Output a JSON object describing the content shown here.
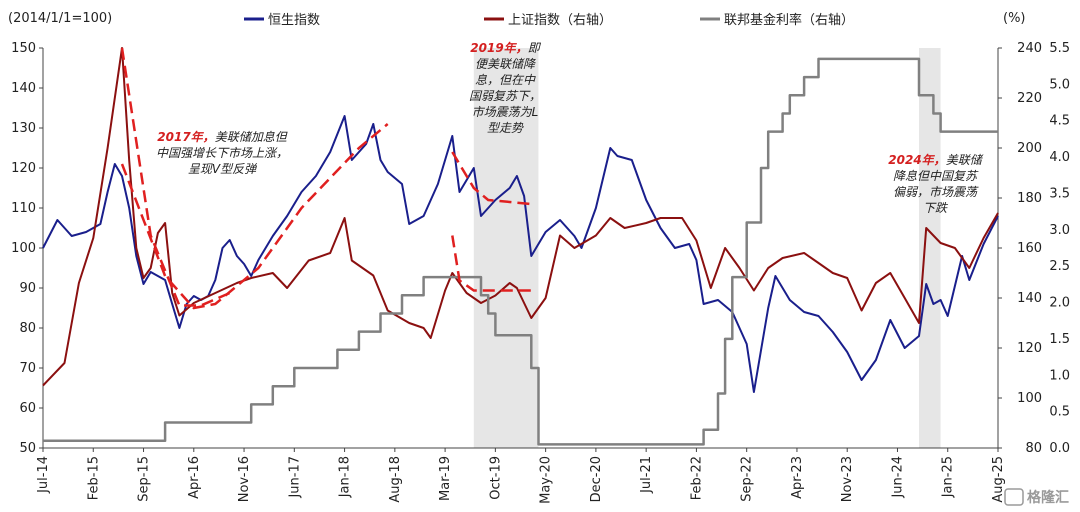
{
  "chart_data": {
    "type": "line",
    "axes": {
      "left": {
        "label": "(2014/1/1=100)",
        "range": [
          50,
          150
        ],
        "ticks": [
          50,
          60,
          70,
          80,
          90,
          100,
          110,
          120,
          130,
          140,
          150
        ]
      },
      "right1": {
        "label": "",
        "range": [
          80,
          240
        ],
        "ticks": [
          80,
          100,
          120,
          140,
          160,
          180,
          200,
          220,
          240
        ]
      },
      "right2": {
        "label": "(%)",
        "range": [
          0.0,
          5.5
        ],
        "ticks": [
          "0.0",
          "0.5",
          "1.0",
          "1.5",
          "2.0",
          "2.5",
          "3.0",
          "3.5",
          "4.0",
          "4.5",
          "5.0",
          "5.5"
        ]
      }
    },
    "x_range": [
      "2014-07",
      "2025-08"
    ],
    "x_ticks": [
      "Jul-14",
      "Feb-15",
      "Sep-15",
      "Apr-16",
      "Nov-16",
      "Jun-17",
      "Jan-18",
      "Aug-18",
      "Mar-19",
      "Oct-19",
      "May-20",
      "Dec-20",
      "Jul-21",
      "Feb-22",
      "Sep-22",
      "Apr-23",
      "Nov-23",
      "Jun-24",
      "Jan-25",
      "Aug-25"
    ],
    "legend_placement": "top",
    "shaded_periods": [
      {
        "start": "2019-07",
        "end": "2020-04"
      },
      {
        "start": "2024-09",
        "end": "2024-12"
      }
    ],
    "series": [
      {
        "name": "恒生指数",
        "axis": "left",
        "color": "#1a1f8c",
        "points": [
          [
            "2014-07",
            100
          ],
          [
            "2014-09",
            107
          ],
          [
            "2014-11",
            103
          ],
          [
            "2015-01",
            104
          ],
          [
            "2015-03",
            106
          ],
          [
            "2015-04",
            114
          ],
          [
            "2015-05",
            121
          ],
          [
            "2015-06",
            118
          ],
          [
            "2015-07",
            110
          ],
          [
            "2015-08",
            98
          ],
          [
            "2015-09",
            91
          ],
          [
            "2015-10",
            94
          ],
          [
            "2015-11",
            93
          ],
          [
            "2015-12",
            92
          ],
          [
            "2016-01",
            86
          ],
          [
            "2016-02",
            80
          ],
          [
            "2016-03",
            86
          ],
          [
            "2016-04",
            88
          ],
          [
            "2016-05",
            87
          ],
          [
            "2016-06",
            88
          ],
          [
            "2016-07",
            92
          ],
          [
            "2016-08",
            100
          ],
          [
            "2016-09",
            102
          ],
          [
            "2016-10",
            98
          ],
          [
            "2016-11",
            96
          ],
          [
            "2016-12",
            93
          ],
          [
            "2017-01",
            97
          ],
          [
            "2017-03",
            103
          ],
          [
            "2017-05",
            108
          ],
          [
            "2017-07",
            114
          ],
          [
            "2017-09",
            118
          ],
          [
            "2017-11",
            124
          ],
          [
            "2018-01",
            133
          ],
          [
            "2018-02",
            122
          ],
          [
            "2018-04",
            126
          ],
          [
            "2018-05",
            131
          ],
          [
            "2018-06",
            122
          ],
          [
            "2018-07",
            119
          ],
          [
            "2018-09",
            116
          ],
          [
            "2018-10",
            106
          ],
          [
            "2018-12",
            108
          ],
          [
            "2019-02",
            116
          ],
          [
            "2019-04",
            128
          ],
          [
            "2019-05",
            114
          ],
          [
            "2019-07",
            120
          ],
          [
            "2019-08",
            108
          ],
          [
            "2019-10",
            112
          ],
          [
            "2019-12",
            115
          ],
          [
            "2020-01",
            118
          ],
          [
            "2020-02",
            113
          ],
          [
            "2020-03",
            98
          ],
          [
            "2020-05",
            104
          ],
          [
            "2020-07",
            107
          ],
          [
            "2020-09",
            103
          ],
          [
            "2020-10",
            100
          ],
          [
            "2020-12",
            110
          ],
          [
            "2021-02",
            125
          ],
          [
            "2021-03",
            123
          ],
          [
            "2021-05",
            122
          ],
          [
            "2021-07",
            112
          ],
          [
            "2021-09",
            105
          ],
          [
            "2021-11",
            100
          ],
          [
            "2022-01",
            101
          ],
          [
            "2022-02",
            97
          ],
          [
            "2022-03",
            86
          ],
          [
            "2022-05",
            87
          ],
          [
            "2022-07",
            84
          ],
          [
            "2022-09",
            76
          ],
          [
            "2022-10",
            64
          ],
          [
            "2022-12",
            85
          ],
          [
            "2023-01",
            93
          ],
          [
            "2023-03",
            87
          ],
          [
            "2023-05",
            84
          ],
          [
            "2023-07",
            83
          ],
          [
            "2023-09",
            79
          ],
          [
            "2023-11",
            74
          ],
          [
            "2024-01",
            67
          ],
          [
            "2024-03",
            72
          ],
          [
            "2024-05",
            82
          ],
          [
            "2024-07",
            75
          ],
          [
            "2024-09",
            78
          ],
          [
            "2024-10",
            91
          ],
          [
            "2024-11",
            86
          ],
          [
            "2024-12",
            87
          ],
          [
            "2025-01",
            83
          ],
          [
            "2025-03",
            98
          ],
          [
            "2025-04",
            92
          ],
          [
            "2025-06",
            101
          ],
          [
            "2025-08",
            108
          ]
        ]
      },
      {
        "name": "上证指数（右轴）",
        "axis": "right1",
        "color": "#8b1010",
        "points": [
          [
            "2014-07",
            105
          ],
          [
            "2014-10",
            114
          ],
          [
            "2014-12",
            146
          ],
          [
            "2015-02",
            164
          ],
          [
            "2015-04",
            200
          ],
          [
            "2015-06",
            240
          ],
          [
            "2015-07",
            195
          ],
          [
            "2015-08",
            160
          ],
          [
            "2015-09",
            148
          ],
          [
            "2015-10",
            152
          ],
          [
            "2015-11",
            166
          ],
          [
            "2015-12",
            170
          ],
          [
            "2016-01",
            142
          ],
          [
            "2016-02",
            133
          ],
          [
            "2016-04",
            138
          ],
          [
            "2016-07",
            142
          ],
          [
            "2016-10",
            146
          ],
          [
            "2016-12",
            148
          ],
          [
            "2017-03",
            150
          ],
          [
            "2017-05",
            144
          ],
          [
            "2017-08",
            155
          ],
          [
            "2017-11",
            158
          ],
          [
            "2018-01",
            172
          ],
          [
            "2018-02",
            155
          ],
          [
            "2018-05",
            149
          ],
          [
            "2018-07",
            135
          ],
          [
            "2018-10",
            130
          ],
          [
            "2018-12",
            128
          ],
          [
            "2019-01",
            124
          ],
          [
            "2019-03",
            143
          ],
          [
            "2019-04",
            150
          ],
          [
            "2019-06",
            142
          ],
          [
            "2019-08",
            138
          ],
          [
            "2019-10",
            141
          ],
          [
            "2019-12",
            146
          ],
          [
            "2020-01",
            144
          ],
          [
            "2020-03",
            132
          ],
          [
            "2020-05",
            140
          ],
          [
            "2020-07",
            165
          ],
          [
            "2020-09",
            160
          ],
          [
            "2020-12",
            165
          ],
          [
            "2021-02",
            172
          ],
          [
            "2021-04",
            168
          ],
          [
            "2021-07",
            170
          ],
          [
            "2021-09",
            172
          ],
          [
            "2021-12",
            172
          ],
          [
            "2022-02",
            163
          ],
          [
            "2022-04",
            144
          ],
          [
            "2022-06",
            160
          ],
          [
            "2022-08",
            152
          ],
          [
            "2022-10",
            143
          ],
          [
            "2022-12",
            152
          ],
          [
            "2023-02",
            156
          ],
          [
            "2023-05",
            158
          ],
          [
            "2023-07",
            154
          ],
          [
            "2023-09",
            150
          ],
          [
            "2023-11",
            148
          ],
          [
            "2024-01",
            135
          ],
          [
            "2024-03",
            146
          ],
          [
            "2024-05",
            150
          ],
          [
            "2024-07",
            140
          ],
          [
            "2024-09",
            130
          ],
          [
            "2024-10",
            168
          ],
          [
            "2024-12",
            162
          ],
          [
            "2025-02",
            160
          ],
          [
            "2025-04",
            152
          ],
          [
            "2025-06",
            164
          ],
          [
            "2025-08",
            174
          ]
        ]
      },
      {
        "name": "联邦基金利率（右轴）",
        "axis": "right2",
        "color": "#808080",
        "step": true,
        "points": [
          [
            "2014-07",
            0.1
          ],
          [
            "2015-12",
            0.35
          ],
          [
            "2016-12",
            0.6
          ],
          [
            "2017-03",
            0.85
          ],
          [
            "2017-06",
            1.1
          ],
          [
            "2017-12",
            1.35
          ],
          [
            "2018-03",
            1.6
          ],
          [
            "2018-06",
            1.85
          ],
          [
            "2018-09",
            2.1
          ],
          [
            "2018-12",
            2.35
          ],
          [
            "2019-08",
            2.1
          ],
          [
            "2019-09",
            1.85
          ],
          [
            "2019-10",
            1.55
          ],
          [
            "2020-03",
            1.1
          ],
          [
            "2020-04",
            0.05
          ],
          [
            "2022-03",
            0.25
          ],
          [
            "2022-05",
            0.75
          ],
          [
            "2022-06",
            1.5
          ],
          [
            "2022-07",
            2.35
          ],
          [
            "2022-09",
            3.1
          ],
          [
            "2022-11",
            3.85
          ],
          [
            "2022-12",
            4.35
          ],
          [
            "2023-02",
            4.6
          ],
          [
            "2023-03",
            4.85
          ],
          [
            "2023-05",
            5.1
          ],
          [
            "2023-07",
            5.35
          ],
          [
            "2024-09",
            4.85
          ],
          [
            "2024-11",
            4.6
          ],
          [
            "2024-12",
            4.35
          ],
          [
            "2025-08",
            4.35
          ]
        ]
      }
    ],
    "trend_lines": [
      {
        "axis": "left",
        "points": [
          [
            "2015-06",
            121
          ],
          [
            "2015-12",
            93
          ],
          [
            "2016-04",
            85
          ],
          [
            "2016-07",
            86
          ],
          [
            "2017-01",
            95
          ],
          [
            "2017-07",
            110
          ],
          [
            "2018-03",
            125
          ],
          [
            "2018-07",
            131
          ]
        ]
      },
      {
        "axis": "right1",
        "points": [
          [
            "2015-06",
            240
          ],
          [
            "2015-10",
            165
          ],
          [
            "2016-02",
            137
          ],
          [
            "2016-05",
            137
          ],
          [
            "2016-09",
            142
          ]
        ]
      },
      {
        "axis": "left",
        "points": [
          [
            "2019-04",
            124
          ],
          [
            "2019-07",
            115
          ],
          [
            "2019-09",
            112
          ],
          [
            "2020-03",
            111
          ]
        ]
      },
      {
        "axis": "right1",
        "points": [
          [
            "2019-04",
            165
          ],
          [
            "2019-05",
            147
          ],
          [
            "2019-07",
            143
          ],
          [
            "2020-03",
            143
          ]
        ]
      }
    ],
    "annotations": [
      {
        "title": "2017年，",
        "body": [
          "美联储加息但",
          "中国强增长下市场上涨，",
          "呈现V型反弹"
        ]
      },
      {
        "title": "2019年，",
        "body": [
          "即",
          "便美联储降",
          "息，但在中",
          "国弱复苏下，",
          "市场震荡为L",
          "型走势"
        ]
      },
      {
        "title": "2024年，",
        "body": [
          "美联储",
          "降息但中国复苏",
          "偏弱，市场震荡",
          "下跌"
        ]
      }
    ]
  },
  "watermark": "格隆汇"
}
